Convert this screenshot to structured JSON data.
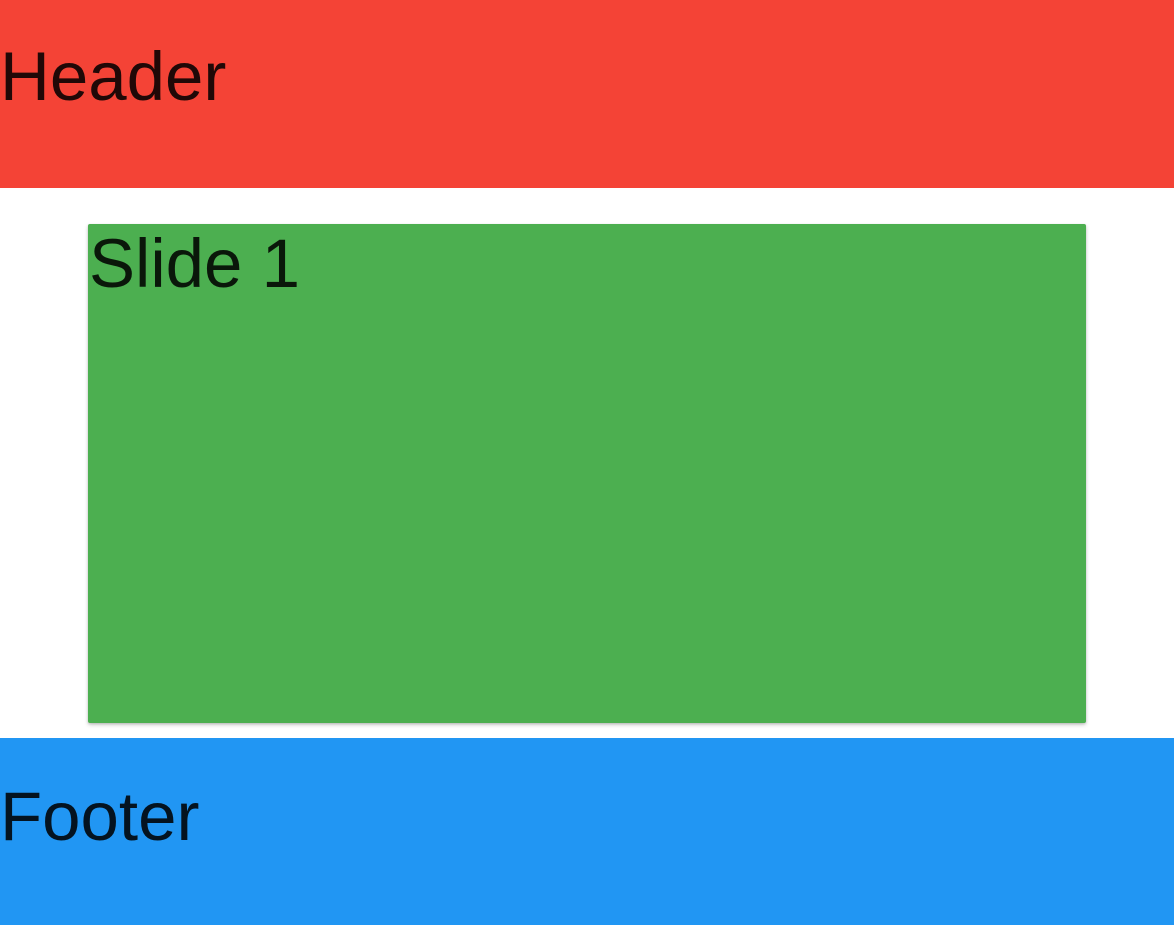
{
  "header": {
    "title": "Header",
    "color": "#f44336"
  },
  "slides": [
    {
      "label": "Slide 1",
      "color": "#4caf50"
    }
  ],
  "footer": {
    "title": "Footer",
    "color": "#2196f3"
  }
}
